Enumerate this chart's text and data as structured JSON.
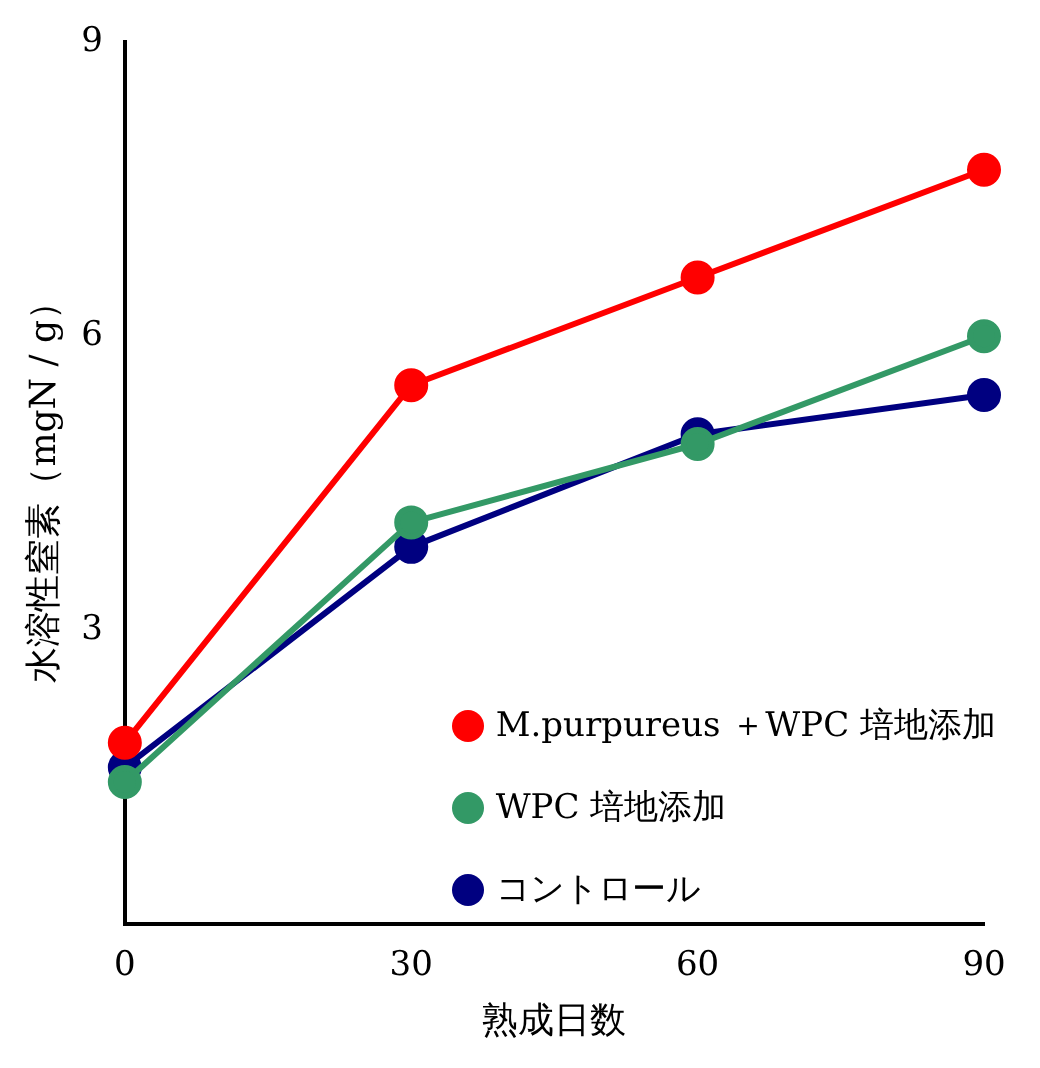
{
  "chart_data": {
    "type": "line",
    "xlabel": "熟成日数",
    "ylabel": "水溶性窒素（mgN / g）",
    "x": [
      0,
      30,
      60,
      90
    ],
    "series": [
      {
        "name": "M.purpureus ＋WPC 培地添加",
        "color": "#ff0000",
        "values": [
          1.85,
          5.5,
          6.6,
          7.7
        ]
      },
      {
        "name": "WPC 培地添加",
        "color": "#339966",
        "values": [
          1.45,
          4.1,
          4.9,
          6.0
        ]
      },
      {
        "name": "コントロール",
        "color": "#000080",
        "values": [
          1.6,
          3.85,
          5.0,
          5.4
        ]
      }
    ],
    "xlim": [
      0,
      90
    ],
    "xticks": [
      0,
      30,
      60,
      90
    ],
    "ylim": [
      0,
      9
    ],
    "yticks": [
      3,
      6,
      9
    ],
    "grid": false,
    "legend": "bottom right",
    "marker": "circle",
    "line_style": "solid"
  }
}
